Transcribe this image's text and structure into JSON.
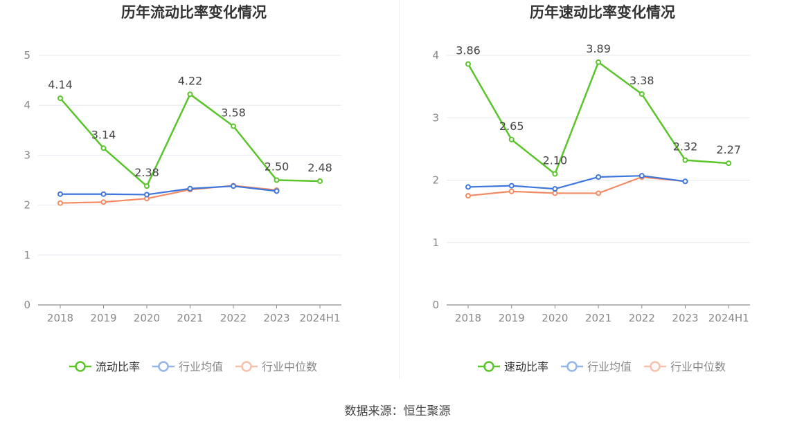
{
  "source_label": "数据来源：恒生聚源",
  "chart_data": [
    {
      "type": "line",
      "title": "历年流动比率变化情况",
      "categories": [
        "2018",
        "2019",
        "2020",
        "2021",
        "2022",
        "2023",
        "2024H1"
      ],
      "ylim": [
        0,
        5
      ],
      "yticks": [
        "0",
        "1",
        "2",
        "3",
        "4",
        "5"
      ],
      "grid": true,
      "legend_position": "bottom",
      "series": [
        {
          "name": "流动比率",
          "color": "#5ac42a",
          "values": [
            4.14,
            3.14,
            2.38,
            4.22,
            3.58,
            2.5,
            2.48
          ],
          "labels": [
            "4.14",
            "3.14",
            "2.38",
            "4.22",
            "3.58",
            "2.50",
            "2.48"
          ]
        },
        {
          "name": "行业均值",
          "color": "#3d76dd",
          "values": [
            2.22,
            2.22,
            2.21,
            2.33,
            2.38,
            2.28,
            null
          ]
        },
        {
          "name": "行业中位数",
          "color": "#f38a62",
          "values": [
            2.04,
            2.06,
            2.13,
            2.31,
            2.39,
            2.3,
            null
          ]
        }
      ]
    },
    {
      "type": "line",
      "title": "历年速动比率变化情况",
      "categories": [
        "2018",
        "2019",
        "2020",
        "2021",
        "2022",
        "2023",
        "2024H1"
      ],
      "ylim": [
        0,
        4
      ],
      "yticks": [
        "0",
        "1",
        "2",
        "3",
        "4"
      ],
      "grid": true,
      "legend_position": "bottom",
      "series": [
        {
          "name": "速动比率",
          "color": "#5ac42a",
          "values": [
            3.86,
            2.65,
            2.1,
            3.89,
            3.38,
            2.32,
            2.27
          ],
          "labels": [
            "3.86",
            "2.65",
            "2.10",
            "3.89",
            "3.38",
            "2.32",
            "2.27"
          ]
        },
        {
          "name": "行业均值",
          "color": "#3d76dd",
          "values": [
            1.89,
            1.91,
            1.86,
            2.05,
            2.07,
            1.98,
            null
          ]
        },
        {
          "name": "行业中位数",
          "color": "#f38a62",
          "values": [
            1.75,
            1.82,
            1.79,
            1.79,
            2.05,
            1.98,
            null
          ]
        }
      ]
    }
  ]
}
